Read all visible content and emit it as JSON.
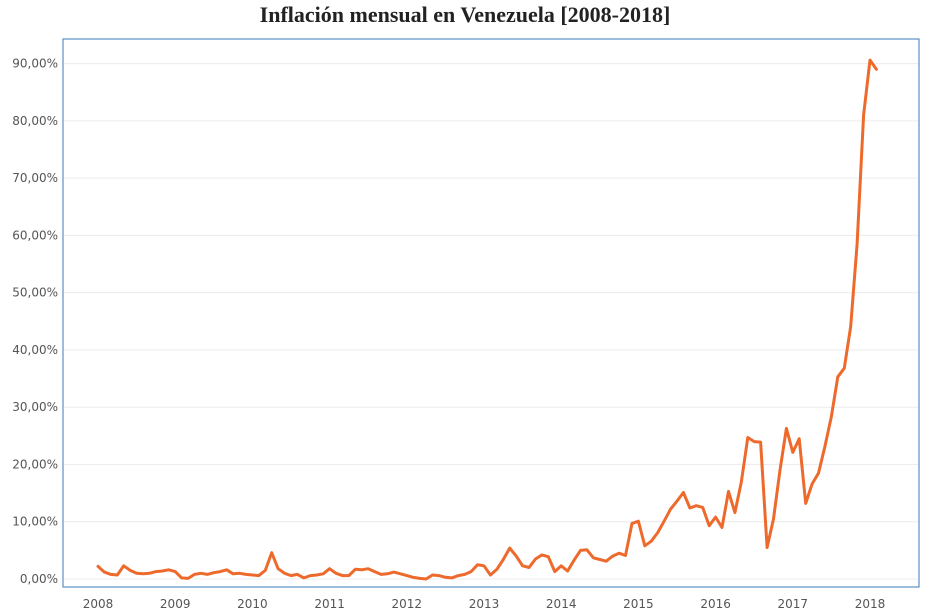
{
  "chart_data": {
    "type": "line",
    "title": "Inflación mensual en Venezuela [2008-2018]",
    "xlabel": "",
    "ylabel": "",
    "ylim": [
      0,
      95
    ],
    "y_ticks": [
      "0,00%",
      "10,00%",
      "20,00%",
      "30,00%",
      "40,00%",
      "50,00%",
      "60,00%",
      "70,00%",
      "80,00%",
      "90,00%"
    ],
    "x_ticks": [
      "2008",
      "2009",
      "2010",
      "2011",
      "2012",
      "2013",
      "2014",
      "2015",
      "2016",
      "2017",
      "2018"
    ],
    "colors": {
      "line": "#ee6a2c",
      "frame": "#3a7ab8",
      "grid": "#ececec"
    },
    "series": [
      {
        "name": "Inflación mensual",
        "x_start": 2008.0,
        "x_step_months": 1,
        "values": [
          2.2,
          1.2,
          0.8,
          0.7,
          2.3,
          1.5,
          1.0,
          0.9,
          1.0,
          1.3,
          1.4,
          1.6,
          1.3,
          0.2,
          0.1,
          0.8,
          1.0,
          0.8,
          1.1,
          1.3,
          1.6,
          0.9,
          1.0,
          0.8,
          0.7,
          0.6,
          1.5,
          4.6,
          1.8,
          1.0,
          0.6,
          0.8,
          0.2,
          0.6,
          0.7,
          0.9,
          1.8,
          1.0,
          0.6,
          0.6,
          1.7,
          1.6,
          1.8,
          1.3,
          0.8,
          0.9,
          1.2,
          0.9,
          0.6,
          0.3,
          0.1,
          0.0,
          0.7,
          0.6,
          0.3,
          0.2,
          0.6,
          0.8,
          1.3,
          2.5,
          2.3,
          0.7,
          1.7,
          3.4,
          5.4,
          4.0,
          2.3,
          2.0,
          3.5,
          4.2,
          3.9,
          1.3,
          2.3,
          1.4,
          3.3,
          5.0,
          5.1,
          3.7,
          3.4,
          3.1,
          4.0,
          4.5,
          4.1,
          9.7,
          10.1,
          5.8,
          6.6,
          8.1,
          10.1,
          12.2,
          13.6,
          15.1,
          12.4,
          12.8,
          12.5,
          9.3,
          10.8,
          9.0,
          15.3,
          11.6,
          16.9,
          24.7,
          24.0,
          23.9,
          5.5,
          10.5,
          18.9,
          26.3,
          22.1,
          24.5,
          13.2,
          16.6,
          18.5,
          23.2,
          28.4,
          35.3,
          36.8,
          44.1,
          58.5,
          81.0,
          90.6,
          89.0
        ]
      }
    ]
  }
}
